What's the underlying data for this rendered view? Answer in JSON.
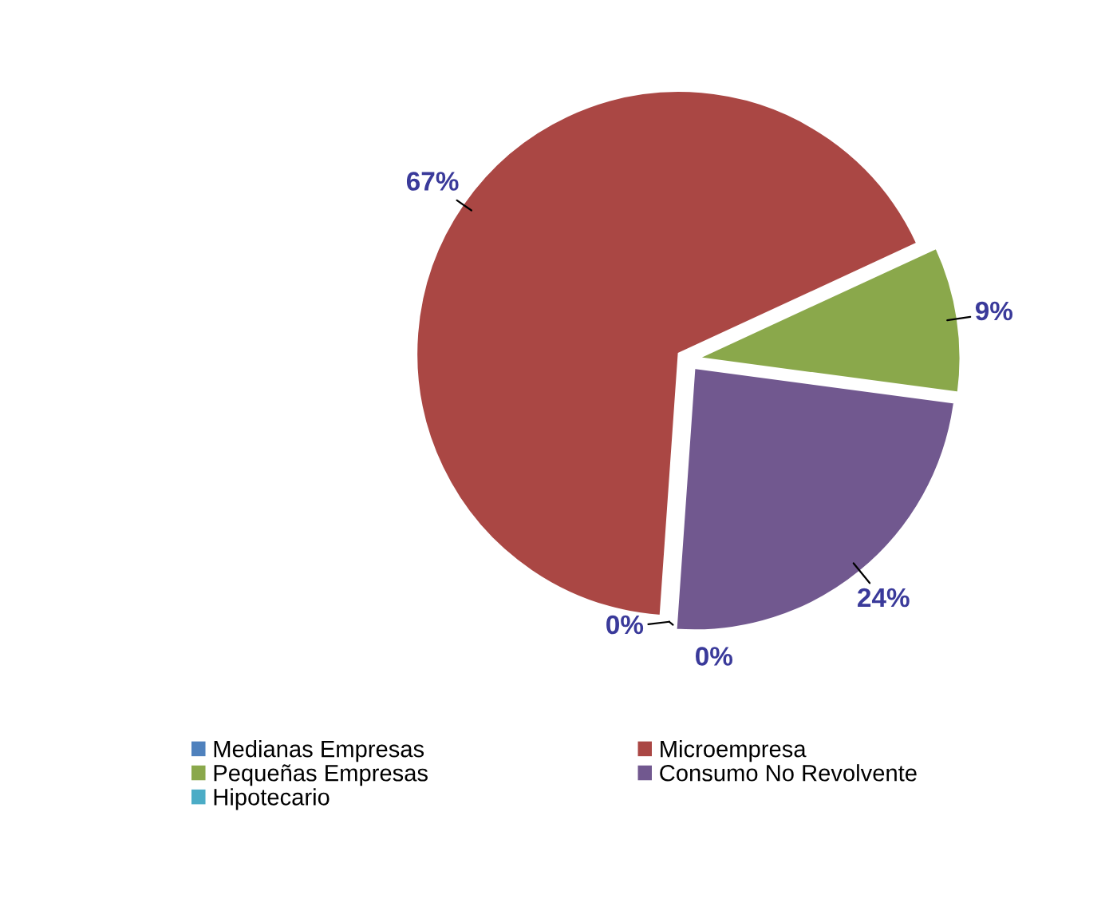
{
  "chart_data": {
    "type": "pie",
    "categories": [
      "Medianas Empresas",
      "Microempresa",
      "Pequeñas Empresas",
      "Consumo No Revolvente",
      "Hipotecario"
    ],
    "values": [
      0,
      67,
      9,
      24,
      0
    ],
    "colors": [
      "#4f81bd",
      "#aa4744",
      "#8aa84b",
      "#71588f",
      "#4bacc6"
    ],
    "value_labels": [
      "0%",
      "67%",
      "9%",
      "24%",
      "0%"
    ],
    "legend": "bottom"
  }
}
